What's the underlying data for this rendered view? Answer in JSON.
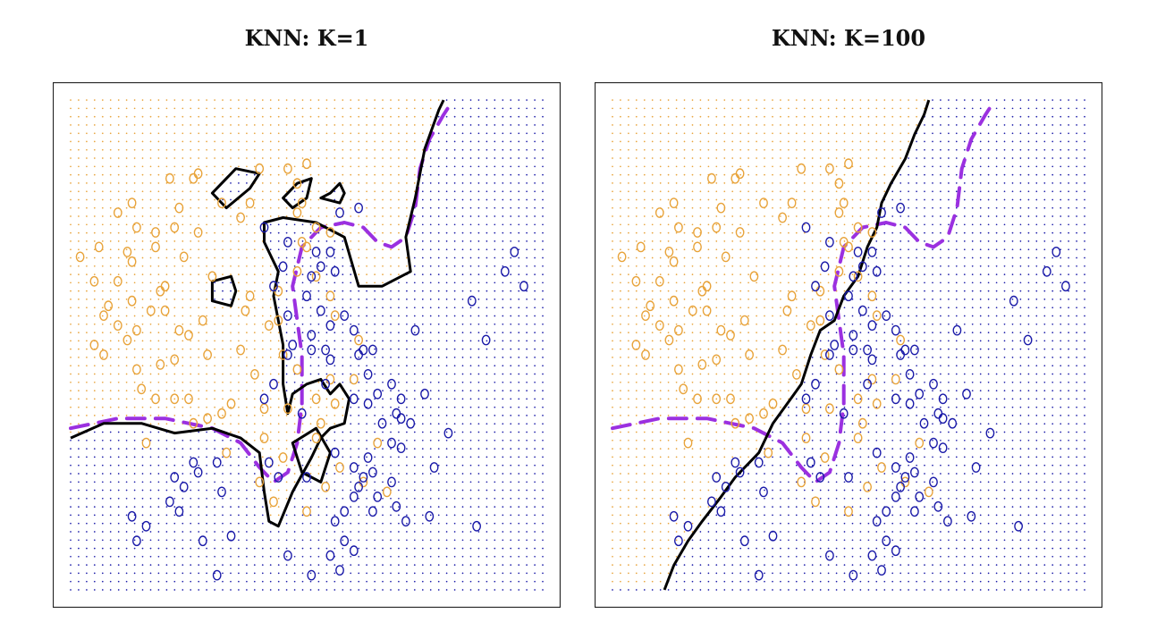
{
  "chart_data": [
    {
      "type": "scatter",
      "title": "KNN: K=1",
      "xlim": [
        0,
        1
      ],
      "ylim": [
        0,
        1
      ],
      "classes": [
        {
          "color": "#e8a33a"
        },
        {
          "color": "#1a1aa8"
        }
      ],
      "grid_points": "dotted background grid coloured by predicted class",
      "boundary_color": "#000000",
      "bayes_boundary_color": "#9b30e0",
      "orange_points": [
        [
          0.5,
          0.13
        ],
        [
          0.46,
          0.14
        ],
        [
          0.48,
          0.17
        ],
        [
          0.4,
          0.14
        ],
        [
          0.27,
          0.15
        ],
        [
          0.26,
          0.16
        ],
        [
          0.21,
          0.16
        ],
        [
          0.32,
          0.21
        ],
        [
          0.49,
          0.21
        ],
        [
          0.48,
          0.23
        ],
        [
          0.23,
          0.22
        ],
        [
          0.27,
          0.27
        ],
        [
          0.1,
          0.23
        ],
        [
          0.13,
          0.21
        ],
        [
          0.22,
          0.26
        ],
        [
          0.38,
          0.21
        ],
        [
          0.36,
          0.24
        ],
        [
          0.24,
          0.32
        ],
        [
          0.18,
          0.3
        ],
        [
          0.13,
          0.33
        ],
        [
          0.06,
          0.3
        ],
        [
          0.14,
          0.26
        ],
        [
          0.18,
          0.27
        ],
        [
          0.12,
          0.31
        ],
        [
          0.1,
          0.37
        ],
        [
          0.05,
          0.37
        ],
        [
          0.02,
          0.32
        ],
        [
          0.2,
          0.38
        ],
        [
          0.19,
          0.39
        ],
        [
          0.13,
          0.41
        ],
        [
          0.17,
          0.43
        ],
        [
          0.08,
          0.42
        ],
        [
          0.07,
          0.44
        ],
        [
          0.14,
          0.47
        ],
        [
          0.1,
          0.46
        ],
        [
          0.23,
          0.47
        ],
        [
          0.25,
          0.48
        ],
        [
          0.38,
          0.4
        ],
        [
          0.37,
          0.43
        ],
        [
          0.22,
          0.53
        ],
        [
          0.19,
          0.54
        ],
        [
          0.14,
          0.55
        ],
        [
          0.22,
          0.61
        ],
        [
          0.15,
          0.59
        ],
        [
          0.25,
          0.61
        ],
        [
          0.18,
          0.61
        ],
        [
          0.29,
          0.65
        ],
        [
          0.41,
          0.63
        ],
        [
          0.48,
          0.55
        ],
        [
          0.55,
          0.57
        ],
        [
          0.52,
          0.61
        ],
        [
          0.45,
          0.52
        ],
        [
          0.53,
          0.66
        ],
        [
          0.6,
          0.57
        ],
        [
          0.61,
          0.49
        ],
        [
          0.42,
          0.46
        ],
        [
          0.44,
          0.45
        ],
        [
          0.5,
          0.3
        ],
        [
          0.52,
          0.26
        ],
        [
          0.49,
          0.29
        ],
        [
          0.52,
          0.36
        ],
        [
          0.55,
          0.4
        ],
        [
          0.56,
          0.44
        ],
        [
          0.39,
          0.56
        ],
        [
          0.26,
          0.66
        ],
        [
          0.28,
          0.45
        ],
        [
          0.41,
          0.69
        ],
        [
          0.45,
          0.73
        ],
        [
          0.56,
          0.62
        ],
        [
          0.52,
          0.69
        ],
        [
          0.57,
          0.75
        ],
        [
          0.65,
          0.7
        ],
        [
          0.67,
          0.8
        ],
        [
          0.54,
          0.79
        ],
        [
          0.5,
          0.84
        ],
        [
          0.43,
          0.82
        ],
        [
          0.4,
          0.78
        ],
        [
          0.33,
          0.72
        ],
        [
          0.29,
          0.52
        ],
        [
          0.16,
          0.7
        ],
        [
          0.07,
          0.52
        ],
        [
          0.05,
          0.5
        ],
        [
          0.12,
          0.49
        ],
        [
          0.32,
          0.64
        ],
        [
          0.34,
          0.62
        ],
        [
          0.36,
          0.51
        ],
        [
          0.46,
          0.63
        ],
        [
          0.44,
          0.39
        ],
        [
          0.48,
          0.35
        ],
        [
          0.55,
          0.27
        ],
        [
          0.2,
          0.43
        ],
        [
          0.3,
          0.36
        ],
        [
          0.62,
          0.78
        ]
      ],
      "blue_points": [
        [
          0.57,
          0.23
        ],
        [
          0.61,
          0.22
        ],
        [
          0.41,
          0.26
        ],
        [
          0.46,
          0.29
        ],
        [
          0.55,
          0.31
        ],
        [
          0.52,
          0.31
        ],
        [
          0.53,
          0.34
        ],
        [
          0.56,
          0.35
        ],
        [
          0.51,
          0.36
        ],
        [
          0.45,
          0.34
        ],
        [
          0.5,
          0.4
        ],
        [
          0.43,
          0.38
        ],
        [
          0.46,
          0.44
        ],
        [
          0.53,
          0.43
        ],
        [
          0.58,
          0.44
        ],
        [
          0.6,
          0.47
        ],
        [
          0.55,
          0.46
        ],
        [
          0.51,
          0.48
        ],
        [
          0.47,
          0.5
        ],
        [
          0.46,
          0.52
        ],
        [
          0.51,
          0.51
        ],
        [
          0.54,
          0.51
        ],
        [
          0.55,
          0.53
        ],
        [
          0.61,
          0.52
        ],
        [
          0.64,
          0.51
        ],
        [
          0.63,
          0.56
        ],
        [
          0.54,
          0.58
        ],
        [
          0.6,
          0.61
        ],
        [
          0.63,
          0.62
        ],
        [
          0.65,
          0.6
        ],
        [
          0.69,
          0.64
        ],
        [
          0.66,
          0.66
        ],
        [
          0.7,
          0.61
        ],
        [
          0.68,
          0.58
        ],
        [
          0.7,
          0.71
        ],
        [
          0.63,
          0.73
        ],
        [
          0.6,
          0.75
        ],
        [
          0.64,
          0.76
        ],
        [
          0.62,
          0.77
        ],
        [
          0.61,
          0.79
        ],
        [
          0.58,
          0.84
        ],
        [
          0.6,
          0.81
        ],
        [
          0.56,
          0.86
        ],
        [
          0.5,
          0.77
        ],
        [
          0.56,
          0.72
        ],
        [
          0.68,
          0.7
        ],
        [
          0.7,
          0.65
        ],
        [
          0.72,
          0.66
        ],
        [
          0.75,
          0.6
        ],
        [
          0.8,
          0.68
        ],
        [
          0.77,
          0.75
        ],
        [
          0.71,
          0.86
        ],
        [
          0.65,
          0.81
        ],
        [
          0.64,
          0.84
        ],
        [
          0.68,
          0.78
        ],
        [
          0.69,
          0.83
        ],
        [
          0.58,
          0.9
        ],
        [
          0.6,
          0.92
        ],
        [
          0.55,
          0.93
        ],
        [
          0.57,
          0.96
        ],
        [
          0.76,
          0.85
        ],
        [
          0.86,
          0.87
        ],
        [
          0.88,
          0.49
        ],
        [
          0.94,
          0.31
        ],
        [
          0.92,
          0.35
        ],
        [
          0.96,
          0.38
        ],
        [
          0.85,
          0.41
        ],
        [
          0.73,
          0.47
        ],
        [
          0.62,
          0.51
        ],
        [
          0.26,
          0.74
        ],
        [
          0.27,
          0.76
        ],
        [
          0.31,
          0.74
        ],
        [
          0.24,
          0.79
        ],
        [
          0.22,
          0.77
        ],
        [
          0.21,
          0.82
        ],
        [
          0.14,
          0.9
        ],
        [
          0.13,
          0.85
        ],
        [
          0.16,
          0.87
        ],
        [
          0.23,
          0.84
        ],
        [
          0.28,
          0.9
        ],
        [
          0.34,
          0.89
        ],
        [
          0.31,
          0.97
        ],
        [
          0.46,
          0.93
        ],
        [
          0.51,
          0.97
        ],
        [
          0.42,
          0.74
        ],
        [
          0.44,
          0.77
        ],
        [
          0.49,
          0.64
        ],
        [
          0.32,
          0.8
        ],
        [
          0.43,
          0.58
        ],
        [
          0.41,
          0.61
        ]
      ]
    },
    {
      "type": "scatter",
      "title": "KNN: K=100",
      "xlim": [
        0,
        1
      ],
      "ylim": [
        0,
        1
      ],
      "classes": [
        {
          "color": "#e8a33a"
        },
        {
          "color": "#1a1aa8"
        }
      ],
      "grid_points": "dotted background grid coloured by predicted class",
      "boundary_color": "#000000",
      "bayes_boundary_color": "#9b30e0"
    }
  ],
  "colors": {
    "orange": "#e8a33a",
    "blue": "#1a1aa8",
    "boundary": "#000000",
    "bayes": "#9b30e0"
  }
}
